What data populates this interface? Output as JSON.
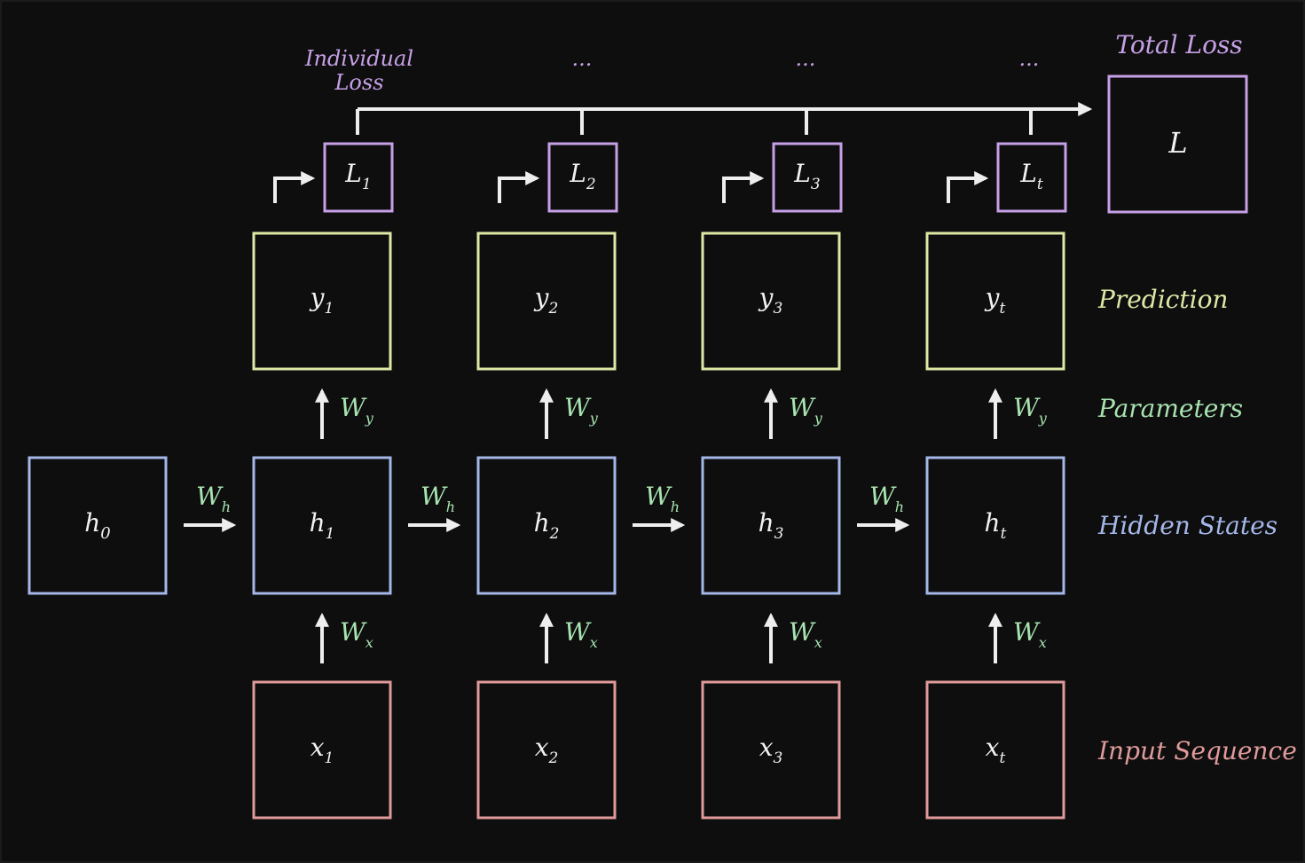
{
  "colors": {
    "background": "#0e0e0e",
    "hidden": "#a4b7e8",
    "input": "#e09a9a",
    "prediction": "#dfe8a6",
    "loss": "#c6a0e6",
    "parameter": "#a8e3b0",
    "arrow": "#eeeeee",
    "text": "#f2f2f2"
  },
  "h0": {
    "base": "h",
    "sub": "0"
  },
  "steps": [
    {
      "x": {
        "base": "x",
        "sub": "1"
      },
      "h": {
        "base": "h",
        "sub": "1"
      },
      "y": {
        "base": "y",
        "sub": "1"
      },
      "l": {
        "base": "L",
        "sub": "1"
      }
    },
    {
      "x": {
        "base": "x",
        "sub": "2"
      },
      "h": {
        "base": "h",
        "sub": "2"
      },
      "y": {
        "base": "y",
        "sub": "2"
      },
      "l": {
        "base": "L",
        "sub": "2"
      }
    },
    {
      "x": {
        "base": "x",
        "sub": "3"
      },
      "h": {
        "base": "h",
        "sub": "3"
      },
      "y": {
        "base": "y",
        "sub": "3"
      },
      "l": {
        "base": "L",
        "sub": "3"
      }
    },
    {
      "x": {
        "base": "x",
        "sub": "t"
      },
      "h": {
        "base": "h",
        "sub": "t"
      },
      "y": {
        "base": "y",
        "sub": "t"
      },
      "l": {
        "base": "L",
        "sub": "t"
      }
    }
  ],
  "weights": {
    "wh": {
      "base": "W",
      "sub": "h"
    },
    "wy": {
      "base": "W",
      "sub": "y"
    },
    "wx": {
      "base": "W",
      "sub": "x"
    }
  },
  "total_loss_symbol": "L",
  "labels": {
    "total_loss": "Total Loss",
    "individual_loss_line1": "Individual",
    "individual_loss_line2": "Loss",
    "ellipsis": "...",
    "prediction": "Prediction",
    "parameters": "Parameters",
    "hidden_states": "Hidden States",
    "input_sequence": "Input Sequence"
  }
}
